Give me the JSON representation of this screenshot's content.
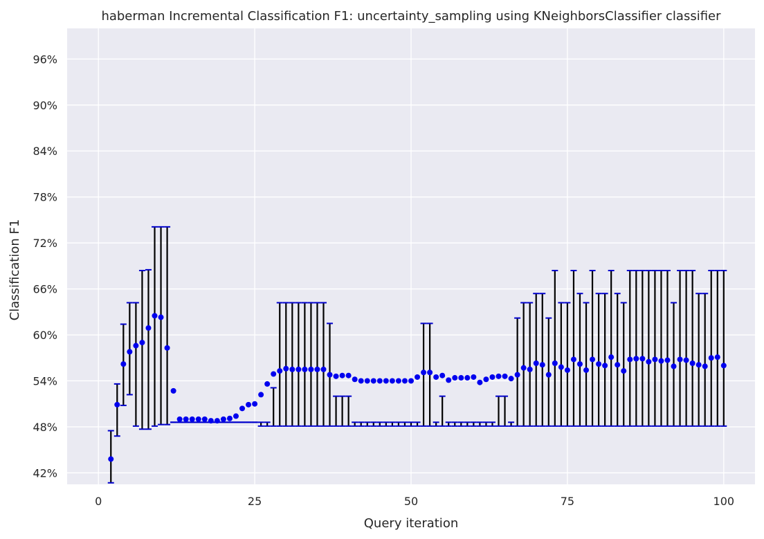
{
  "chart_data": {
    "type": "scatter",
    "title": "haberman Incremental Classification F1: uncertainty_sampling using KNeighborsClassifier classifier",
    "xlabel": "Query iteration",
    "ylabel": "Classification F1",
    "xlim": [
      -5,
      105
    ],
    "ylim": [
      0.405,
      1.0
    ],
    "xticks": [
      0,
      25,
      50,
      75,
      100
    ],
    "xtick_labels": [
      "0",
      "25",
      "50",
      "75",
      "100"
    ],
    "yticks": [
      0.42,
      0.48,
      0.54,
      0.6,
      0.66,
      0.72,
      0.78,
      0.84,
      0.9,
      0.96
    ],
    "ytick_labels": [
      "42%",
      "48%",
      "54%",
      "60%",
      "66%",
      "72%",
      "78%",
      "84%",
      "90%",
      "96%"
    ],
    "grid": true,
    "background": "#eaeaf2",
    "grid_color": "#ffffff",
    "marker_color": "#0000ee",
    "errorbar_color": "#000000",
    "cap_color": "#0000cc",
    "series": [
      {
        "x": [
          2,
          3,
          4,
          5,
          6,
          7,
          8,
          9,
          10,
          11,
          12,
          13,
          14,
          15,
          16,
          17,
          18,
          19,
          20,
          21,
          22,
          23,
          24,
          25,
          26,
          27,
          28,
          29,
          30,
          31,
          32,
          33,
          34,
          35,
          36,
          37,
          38,
          39,
          40,
          41,
          42,
          43,
          44,
          45,
          46,
          47,
          48,
          49,
          50,
          51,
          52,
          53,
          54,
          55,
          56,
          57,
          58,
          59,
          60,
          61,
          62,
          63,
          64,
          65,
          66,
          67,
          68,
          69,
          70,
          71,
          72,
          73,
          74,
          75,
          76,
          77,
          78,
          79,
          80,
          81,
          82,
          83,
          84,
          85,
          86,
          87,
          88,
          89,
          90,
          91,
          92,
          93,
          94,
          95,
          96,
          97,
          98,
          99,
          100
        ],
        "y": [
          0.438,
          0.509,
          0.562,
          0.578,
          0.586,
          0.59,
          0.609,
          0.625,
          0.623,
          0.583,
          0.527,
          0.49,
          0.49,
          0.49,
          0.49,
          0.49,
          0.488,
          0.488,
          0.49,
          0.491,
          0.494,
          0.504,
          0.509,
          0.51,
          0.522,
          0.536,
          0.549,
          0.553,
          0.556,
          0.555,
          0.555,
          0.555,
          0.555,
          0.555,
          0.555,
          0.548,
          0.546,
          0.547,
          0.547,
          0.542,
          0.54,
          0.54,
          0.54,
          0.54,
          0.54,
          0.54,
          0.54,
          0.54,
          0.54,
          0.545,
          0.551,
          0.551,
          0.545,
          0.547,
          0.541,
          0.544,
          0.544,
          0.544,
          0.545,
          0.538,
          0.542,
          0.545,
          0.546,
          0.546,
          0.543,
          0.548,
          0.557,
          0.555,
          0.563,
          0.561,
          0.548,
          0.563,
          0.558,
          0.554,
          0.568,
          0.562,
          0.554,
          0.568,
          0.562,
          0.56,
          0.571,
          0.561,
          0.553,
          0.568,
          0.569,
          0.569,
          0.565,
          0.568,
          0.566,
          0.567,
          0.559,
          0.568,
          0.567,
          0.563,
          0.561,
          0.559,
          0.57,
          0.571,
          0.56
        ],
        "err_low": [
          0.407,
          0.468,
          0.508,
          0.522,
          0.481,
          0.477,
          0.477,
          0.481,
          0.483,
          0.483,
          0.486,
          0.486,
          0.486,
          0.486,
          0.486,
          0.486,
          0.486,
          0.486,
          0.486,
          0.486,
          0.486,
          0.486,
          0.486,
          0.486,
          0.481,
          0.481,
          0.481,
          0.481,
          0.481,
          0.481,
          0.481,
          0.481,
          0.481,
          0.481,
          0.481,
          0.481,
          0.481,
          0.481,
          0.481,
          0.481,
          0.481,
          0.481,
          0.481,
          0.481,
          0.481,
          0.481,
          0.481,
          0.481,
          0.481,
          0.481,
          0.481,
          0.481,
          0.481,
          0.481,
          0.481,
          0.481,
          0.481,
          0.481,
          0.481,
          0.481,
          0.481,
          0.481,
          0.481,
          0.481,
          0.481,
          0.481,
          0.481,
          0.481,
          0.481,
          0.481,
          0.481,
          0.481,
          0.481,
          0.481,
          0.481,
          0.481,
          0.481,
          0.481,
          0.481,
          0.481,
          0.481,
          0.481,
          0.481,
          0.481,
          0.481,
          0.481,
          0.481,
          0.481,
          0.481,
          0.481,
          0.481,
          0.481,
          0.481,
          0.481,
          0.481,
          0.481,
          0.481,
          0.481,
          0.481
        ],
        "err_high": [
          0.475,
          0.536,
          0.614,
          0.642,
          0.642,
          0.684,
          0.685,
          0.741,
          0.741,
          0.741,
          0.486,
          0.486,
          0.486,
          0.486,
          0.486,
          0.486,
          0.486,
          0.486,
          0.486,
          0.486,
          0.486,
          0.486,
          0.486,
          0.486,
          0.486,
          0.486,
          0.531,
          0.642,
          0.642,
          0.642,
          0.642,
          0.642,
          0.642,
          0.642,
          0.642,
          0.615,
          0.52,
          0.52,
          0.52,
          0.486,
          0.486,
          0.486,
          0.486,
          0.486,
          0.486,
          0.486,
          0.486,
          0.486,
          0.486,
          0.486,
          0.615,
          0.615,
          0.486,
          0.52,
          0.486,
          0.486,
          0.486,
          0.486,
          0.486,
          0.486,
          0.486,
          0.486,
          0.52,
          0.52,
          0.486,
          0.622,
          0.642,
          0.642,
          0.654,
          0.654,
          0.622,
          0.684,
          0.642,
          0.642,
          0.684,
          0.654,
          0.642,
          0.684,
          0.654,
          0.654,
          0.684,
          0.654,
          0.642,
          0.684,
          0.684,
          0.684,
          0.684,
          0.684,
          0.684,
          0.684,
          0.642,
          0.684,
          0.684,
          0.684,
          0.654,
          0.654,
          0.684,
          0.684,
          0.684
        ]
      }
    ]
  }
}
